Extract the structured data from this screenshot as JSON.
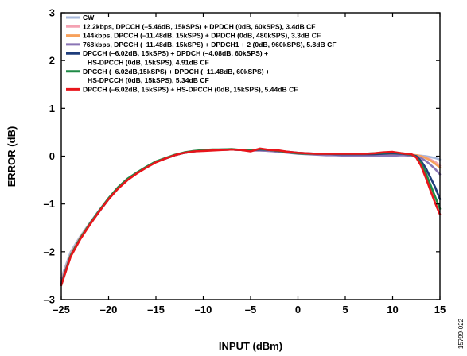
{
  "chart_data": {
    "type": "line",
    "xlabel": "INPUT (dBm)",
    "ylabel": "ERROR (dB)",
    "xlim": [
      -25,
      15
    ],
    "ylim": [
      -3,
      3
    ],
    "xticks": [
      "–25",
      "–20",
      "–15",
      "–10",
      "–5",
      "0",
      "5",
      "10",
      "15"
    ],
    "yticks": [
      "3",
      "2",
      "1",
      "0",
      "–1",
      "–2",
      "–3"
    ],
    "grid": false,
    "legend_position": "top-left",
    "figure_id": "15799-022",
    "series": [
      {
        "name": "CW",
        "legend_lines": [
          "CW"
        ],
        "color": "#a7b9dc",
        "x": [
          -25,
          -24,
          -23,
          -22,
          -21,
          -20,
          -19,
          -18,
          -17,
          -16,
          -15,
          -14,
          -13,
          -12,
          -11,
          -10,
          -9,
          -8,
          -7,
          -6,
          -5,
          -4,
          -3,
          -2,
          -1,
          0,
          1,
          2,
          3,
          4,
          5,
          6,
          7,
          8,
          9,
          10,
          11,
          12,
          12.5,
          13,
          13.5,
          14,
          14.5,
          15
        ],
        "y": [
          -2.55,
          -2.0,
          -1.68,
          -1.4,
          -1.13,
          -0.88,
          -0.66,
          -0.48,
          -0.34,
          -0.23,
          -0.12,
          -0.05,
          0.02,
          0.07,
          0.1,
          0.12,
          0.13,
          0.13,
          0.14,
          0.13,
          0.12,
          0.12,
          0.11,
          0.1,
          0.08,
          0.06,
          0.05,
          0.04,
          0.03,
          0.02,
          0.02,
          0.02,
          0.02,
          0.02,
          0.02,
          0.03,
          0.03,
          0.02,
          0.02,
          0.01,
          0.0,
          -0.02,
          -0.04,
          -0.07
        ]
      },
      {
        "name": "12.2kbps, DPCCH (–5.46dB, 15kSPS) + DPDCH (0dB, 60kSPS), 3.4dB CF",
        "legend_lines": [
          "12.2kbps, DPCCH (–5.46dB, 15kSPS) + DPDCH (0dB, 60kSPS), 3.4dB CF"
        ],
        "color": "#f4a2b3",
        "x": [
          -25,
          -24,
          -23,
          -22,
          -21,
          -20,
          -19,
          -18,
          -17,
          -16,
          -15,
          -14,
          -13,
          -12,
          -11,
          -10,
          -9,
          -8,
          -7,
          -6,
          -5,
          -4,
          -3,
          -2,
          -1,
          0,
          1,
          2,
          3,
          4,
          5,
          6,
          7,
          8,
          9,
          10,
          11,
          12,
          12.5,
          13,
          13.5,
          14,
          14.5,
          15
        ],
        "y": [
          -2.6,
          -2.05,
          -1.7,
          -1.42,
          -1.15,
          -0.9,
          -0.67,
          -0.49,
          -0.35,
          -0.23,
          -0.12,
          -0.05,
          0.02,
          0.07,
          0.1,
          0.12,
          0.13,
          0.13,
          0.14,
          0.13,
          0.12,
          0.12,
          0.11,
          0.1,
          0.08,
          0.06,
          0.05,
          0.04,
          0.03,
          0.03,
          0.02,
          0.02,
          0.02,
          0.02,
          0.02,
          0.03,
          0.03,
          0.02,
          0.02,
          0.0,
          -0.03,
          -0.07,
          -0.12,
          -0.2
        ]
      },
      {
        "name": "144kbps, DPCCH (–11.48dB, 15kSPS) + DPDCH (0dB, 480kSPS), 3.3dB CF",
        "legend_lines": [
          "144kbps, DPCCH (–11.48dB, 15kSPS) + DPDCH (0dB, 480kSPS), 3.3dB CF"
        ],
        "color": "#f7a15b",
        "x": [
          -25,
          -24,
          -23,
          -22,
          -21,
          -20,
          -19,
          -18,
          -17,
          -16,
          -15,
          -14,
          -13,
          -12,
          -11,
          -10,
          -9,
          -8,
          -7,
          -6,
          -5,
          -4,
          -3,
          -2,
          -1,
          0,
          1,
          2,
          3,
          4,
          5,
          6,
          7,
          8,
          9,
          10,
          11,
          12,
          12.5,
          13,
          13.5,
          14,
          14.5,
          15
        ],
        "y": [
          -2.62,
          -2.06,
          -1.71,
          -1.42,
          -1.15,
          -0.9,
          -0.67,
          -0.49,
          -0.35,
          -0.23,
          -0.12,
          -0.05,
          0.02,
          0.07,
          0.1,
          0.12,
          0.13,
          0.13,
          0.14,
          0.13,
          0.12,
          0.13,
          0.12,
          0.1,
          0.08,
          0.06,
          0.05,
          0.04,
          0.04,
          0.03,
          0.03,
          0.03,
          0.03,
          0.03,
          0.04,
          0.04,
          0.04,
          0.03,
          0.02,
          0.0,
          -0.04,
          -0.09,
          -0.16,
          -0.24
        ]
      },
      {
        "name": "768kbps, DPCCH (–11.48dB, 15kSPS) + DPDCH1 + 2 (0dB, 960kSPS), 5.8dB CF",
        "legend_lines": [
          "768kbps, DPCCH (–11.48dB, 15kSPS) + DPDCH1 + 2 (0dB, 960kSPS), 5.8dB CF"
        ],
        "color": "#8a75b5",
        "x": [
          -25,
          -24,
          -23,
          -22,
          -21,
          -20,
          -19,
          -18,
          -17,
          -16,
          -15,
          -14,
          -13,
          -12,
          -11,
          -10,
          -9,
          -8,
          -7,
          -6,
          -5,
          -4,
          -3,
          -2,
          -1,
          0,
          1,
          2,
          3,
          4,
          5,
          6,
          7,
          8,
          9,
          10,
          11,
          12,
          12.5,
          13,
          13.5,
          14,
          14.5,
          15
        ],
        "y": [
          -2.64,
          -2.07,
          -1.72,
          -1.43,
          -1.16,
          -0.9,
          -0.67,
          -0.49,
          -0.35,
          -0.23,
          -0.12,
          -0.05,
          0.02,
          0.07,
          0.1,
          0.12,
          0.13,
          0.13,
          0.14,
          0.13,
          0.12,
          0.12,
          0.11,
          0.09,
          0.07,
          0.05,
          0.04,
          0.03,
          0.02,
          0.02,
          0.01,
          0.01,
          0.01,
          0.01,
          0.01,
          0.01,
          0.02,
          0.01,
          0.0,
          -0.04,
          -0.1,
          -0.18,
          -0.27,
          -0.38
        ]
      },
      {
        "name": "DPCCH (–6.02dB, 15kSPS) + DPDCH (–4.08dB, 60kSPS) + HS-DPCCH (0dB, 15kSPS), 4.91dB CF",
        "legend_lines": [
          "DPCCH (–6.02dB, 15kSPS) + DPDCH (–4.08dB, 60kSPS) +",
          "HS-DPCCH (0dB, 15kSPS), 4.91dB CF"
        ],
        "color": "#1e3d7b",
        "x": [
          -25,
          -24,
          -23,
          -22,
          -21,
          -20,
          -19,
          -18,
          -17,
          -16,
          -15,
          -14,
          -13,
          -12,
          -11,
          -10,
          -9,
          -8,
          -7,
          -6,
          -5,
          -4,
          -3,
          -2,
          -1,
          0,
          1,
          2,
          3,
          4,
          5,
          6,
          7,
          8,
          9,
          10,
          11,
          12,
          12.5,
          13,
          13.5,
          14,
          14.5,
          15
        ],
        "y": [
          -2.68,
          -2.08,
          -1.72,
          -1.43,
          -1.16,
          -0.9,
          -0.67,
          -0.49,
          -0.35,
          -0.23,
          -0.12,
          -0.05,
          0.02,
          0.07,
          0.1,
          0.12,
          0.13,
          0.14,
          0.14,
          0.13,
          0.12,
          0.14,
          0.13,
          0.11,
          0.09,
          0.07,
          0.06,
          0.05,
          0.05,
          0.04,
          0.04,
          0.04,
          0.04,
          0.04,
          0.05,
          0.06,
          0.05,
          0.03,
          0.0,
          -0.1,
          -0.25,
          -0.45,
          -0.65,
          -0.9
        ]
      },
      {
        "name": "DPCCH (–6.02dB,15kSPS) + DPDCH (–11.48dB, 60kSPS) + HS-DPCCH (0dB, 15kSPS), 5.34dB CF",
        "legend_lines": [
          "DPCCH (–6.02dB,15kSPS) + DPDCH (–11.48dB, 60kSPS) +",
          "HS-DPCCH (0dB, 15kSPS), 5.34dB CF"
        ],
        "color": "#1f8a46",
        "x": [
          -25,
          -24,
          -23,
          -22,
          -21,
          -20,
          -19,
          -18,
          -17,
          -16,
          -15,
          -14,
          -13,
          -12,
          -11,
          -10,
          -9,
          -8,
          -7,
          -6,
          -5,
          -4,
          -3,
          -2,
          -1,
          0,
          1,
          2,
          3,
          4,
          5,
          6,
          7,
          8,
          9,
          10,
          11,
          12,
          12.5,
          13,
          13.5,
          14,
          14.5,
          15
        ],
        "y": [
          -2.7,
          -2.08,
          -1.72,
          -1.42,
          -1.14,
          -0.88,
          -0.65,
          -0.47,
          -0.34,
          -0.22,
          -0.11,
          -0.04,
          0.03,
          0.08,
          0.11,
          0.13,
          0.14,
          0.14,
          0.15,
          0.13,
          0.12,
          0.15,
          0.13,
          0.11,
          0.08,
          0.06,
          0.05,
          0.05,
          0.05,
          0.05,
          0.05,
          0.05,
          0.05,
          0.06,
          0.07,
          0.08,
          0.06,
          0.03,
          -0.02,
          -0.15,
          -0.35,
          -0.6,
          -0.85,
          -1.1
        ]
      },
      {
        "name": "DPCCH (–6.02dB, 15kSPS) + HS-DPCCH (0dB, 15kSPS), 5.44dB CF",
        "legend_lines": [
          "DPCCH (–6.02dB, 15kSPS) + HS-DPCCH (0dB, 15kSPS), 5.44dB CF"
        ],
        "color": "#e8151b",
        "x": [
          -25,
          -24,
          -23,
          -22,
          -21,
          -20,
          -19,
          -18,
          -17,
          -16,
          -15,
          -14,
          -13,
          -12,
          -11,
          -10,
          -9,
          -8,
          -7,
          -6,
          -5,
          -4,
          -3,
          -2,
          -1,
          0,
          1,
          2,
          3,
          4,
          5,
          6,
          7,
          8,
          9,
          10,
          11,
          12,
          12.5,
          13,
          13.5,
          14,
          14.5,
          15
        ],
        "y": [
          -2.7,
          -2.1,
          -1.74,
          -1.44,
          -1.16,
          -0.9,
          -0.68,
          -0.5,
          -0.36,
          -0.24,
          -0.13,
          -0.05,
          0.02,
          0.07,
          0.1,
          0.11,
          0.12,
          0.13,
          0.14,
          0.13,
          0.1,
          0.16,
          0.13,
          0.12,
          0.09,
          0.07,
          0.06,
          0.05,
          0.05,
          0.05,
          0.05,
          0.05,
          0.05,
          0.06,
          0.08,
          0.09,
          0.06,
          0.04,
          -0.03,
          -0.2,
          -0.45,
          -0.72,
          -0.98,
          -1.22
        ]
      }
    ]
  }
}
